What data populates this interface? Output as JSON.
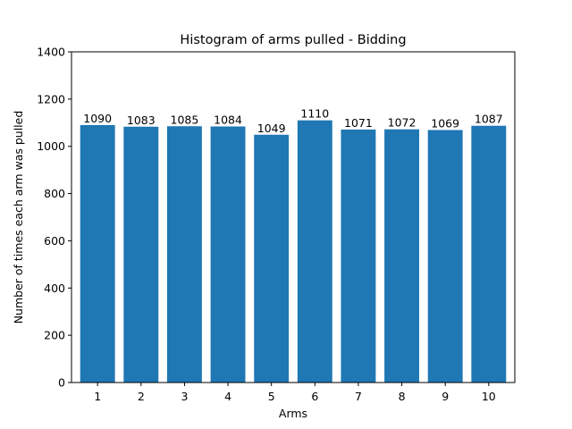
{
  "chart_data": {
    "type": "bar",
    "title": "Histogram of arms pulled - Bidding",
    "xlabel": "Arms",
    "ylabel": "Number of times each arm was pulled",
    "categories": [
      "1",
      "2",
      "3",
      "4",
      "5",
      "6",
      "7",
      "8",
      "9",
      "10"
    ],
    "values": [
      1090,
      1083,
      1085,
      1084,
      1049,
      1110,
      1071,
      1072,
      1069,
      1087
    ],
    "ylim": [
      0,
      1400
    ],
    "yticks": [
      0,
      200,
      400,
      600,
      800,
      1000,
      1200,
      1400
    ],
    "bar_color": "#1f77b4",
    "grid": false,
    "legend": "none"
  }
}
